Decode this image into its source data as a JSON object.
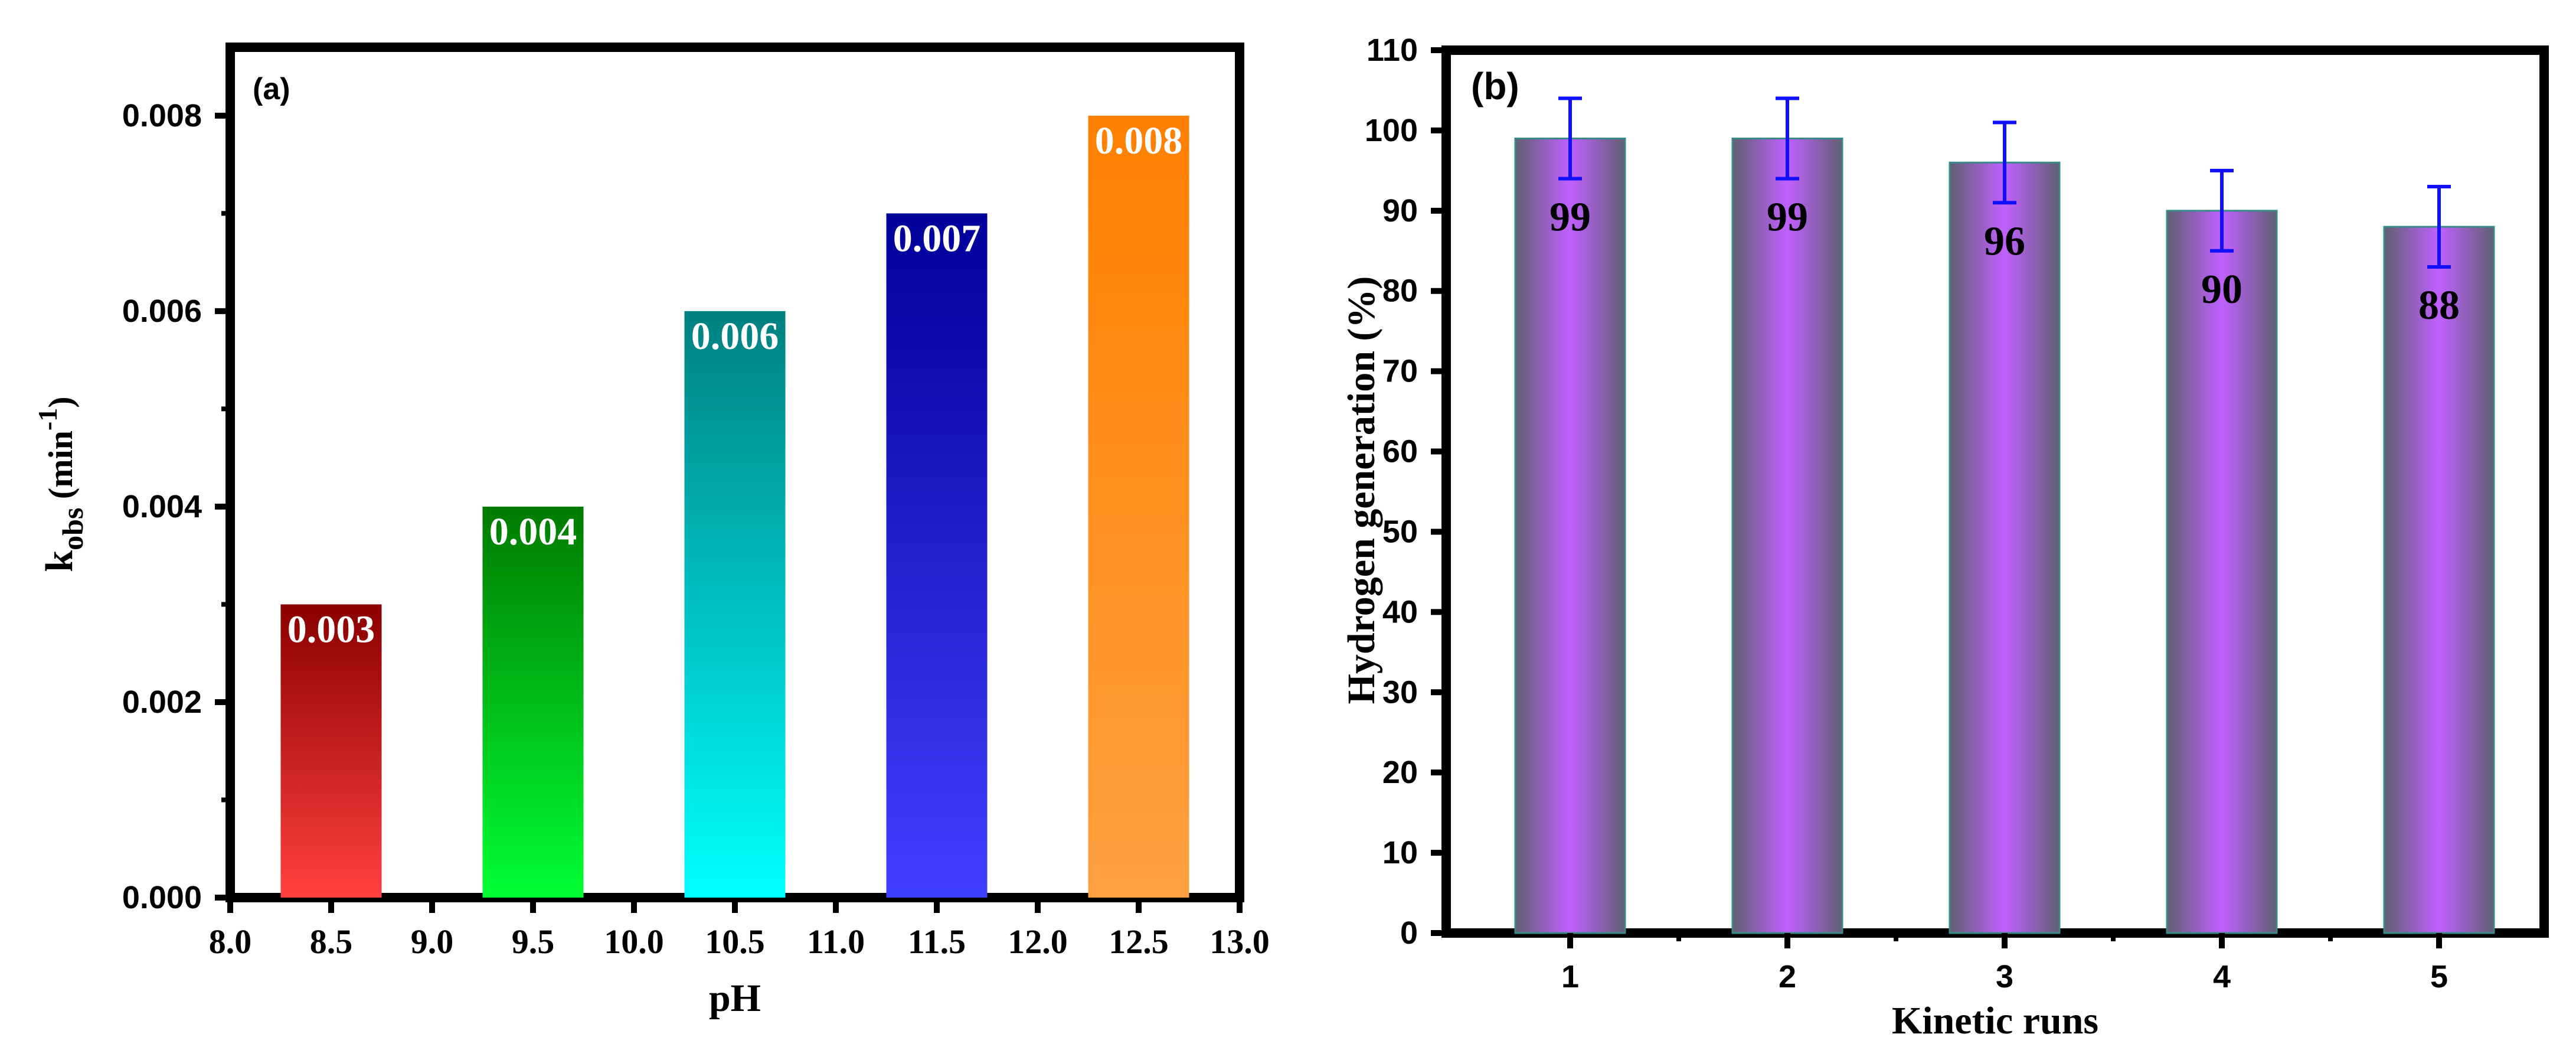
{
  "chart_data": [
    {
      "type": "bar",
      "panel_label": "(a)",
      "title": "",
      "xlabel": "pH",
      "ylabel_main": "k",
      "ylabel_sub": "obs",
      "ylabel_unit_open": " (min",
      "ylabel_unit_sup": "-1",
      "ylabel_unit_close": ")",
      "x": [
        8.5,
        9.5,
        10.5,
        11.5,
        12.5
      ],
      "values": [
        0.003,
        0.004,
        0.006,
        0.007,
        0.008
      ],
      "data_labels": [
        "0.003",
        "0.004",
        "0.006",
        "0.007",
        "0.008"
      ],
      "bar_colors": [
        [
          "#8b0000",
          "#ff4040"
        ],
        [
          "#007a00",
          "#00ff33"
        ],
        [
          "#008080",
          "#00ffff"
        ],
        [
          "#00009a",
          "#4040ff"
        ],
        [
          "#ff8000",
          "#ffa040"
        ]
      ],
      "xlim": [
        8.0,
        13.0
      ],
      "ylim": [
        0,
        0.0087
      ],
      "xticks": [
        "8.0",
        "8.5",
        "9.0",
        "9.5",
        "10.0",
        "10.5",
        "11.0",
        "11.5",
        "12.0",
        "12.5",
        "13.0"
      ],
      "xtick_values": [
        8.0,
        8.5,
        9.0,
        9.5,
        10.0,
        10.5,
        11.0,
        11.5,
        12.0,
        12.5,
        13.0
      ],
      "yticks": [
        "0.000",
        "0.002",
        "0.004",
        "0.006",
        "0.008"
      ],
      "ytick_values": [
        0.0,
        0.002,
        0.004,
        0.006,
        0.008
      ],
      "grid": false
    },
    {
      "type": "bar",
      "panel_label": "(b)",
      "title": "",
      "xlabel": "Kinetic runs",
      "ylabel": "Hydrogen generation (%)",
      "categories": [
        "1",
        "2",
        "3",
        "4",
        "5"
      ],
      "values": [
        99,
        99,
        96,
        90,
        88
      ],
      "errors": [
        5,
        5,
        5,
        5,
        5
      ],
      "data_labels": [
        "99",
        "99",
        "96",
        "90",
        "88"
      ],
      "bar_color_center": "#c060ff",
      "bar_color_edge": "#606070",
      "error_color": "#1010ff",
      "ylim": [
        0,
        110
      ],
      "yticks": [
        "0",
        "10",
        "20",
        "30",
        "40",
        "50",
        "60",
        "70",
        "80",
        "90",
        "100",
        "110"
      ],
      "ytick_values": [
        0,
        10,
        20,
        30,
        40,
        50,
        60,
        70,
        80,
        90,
        100,
        110
      ],
      "grid": false
    }
  ]
}
